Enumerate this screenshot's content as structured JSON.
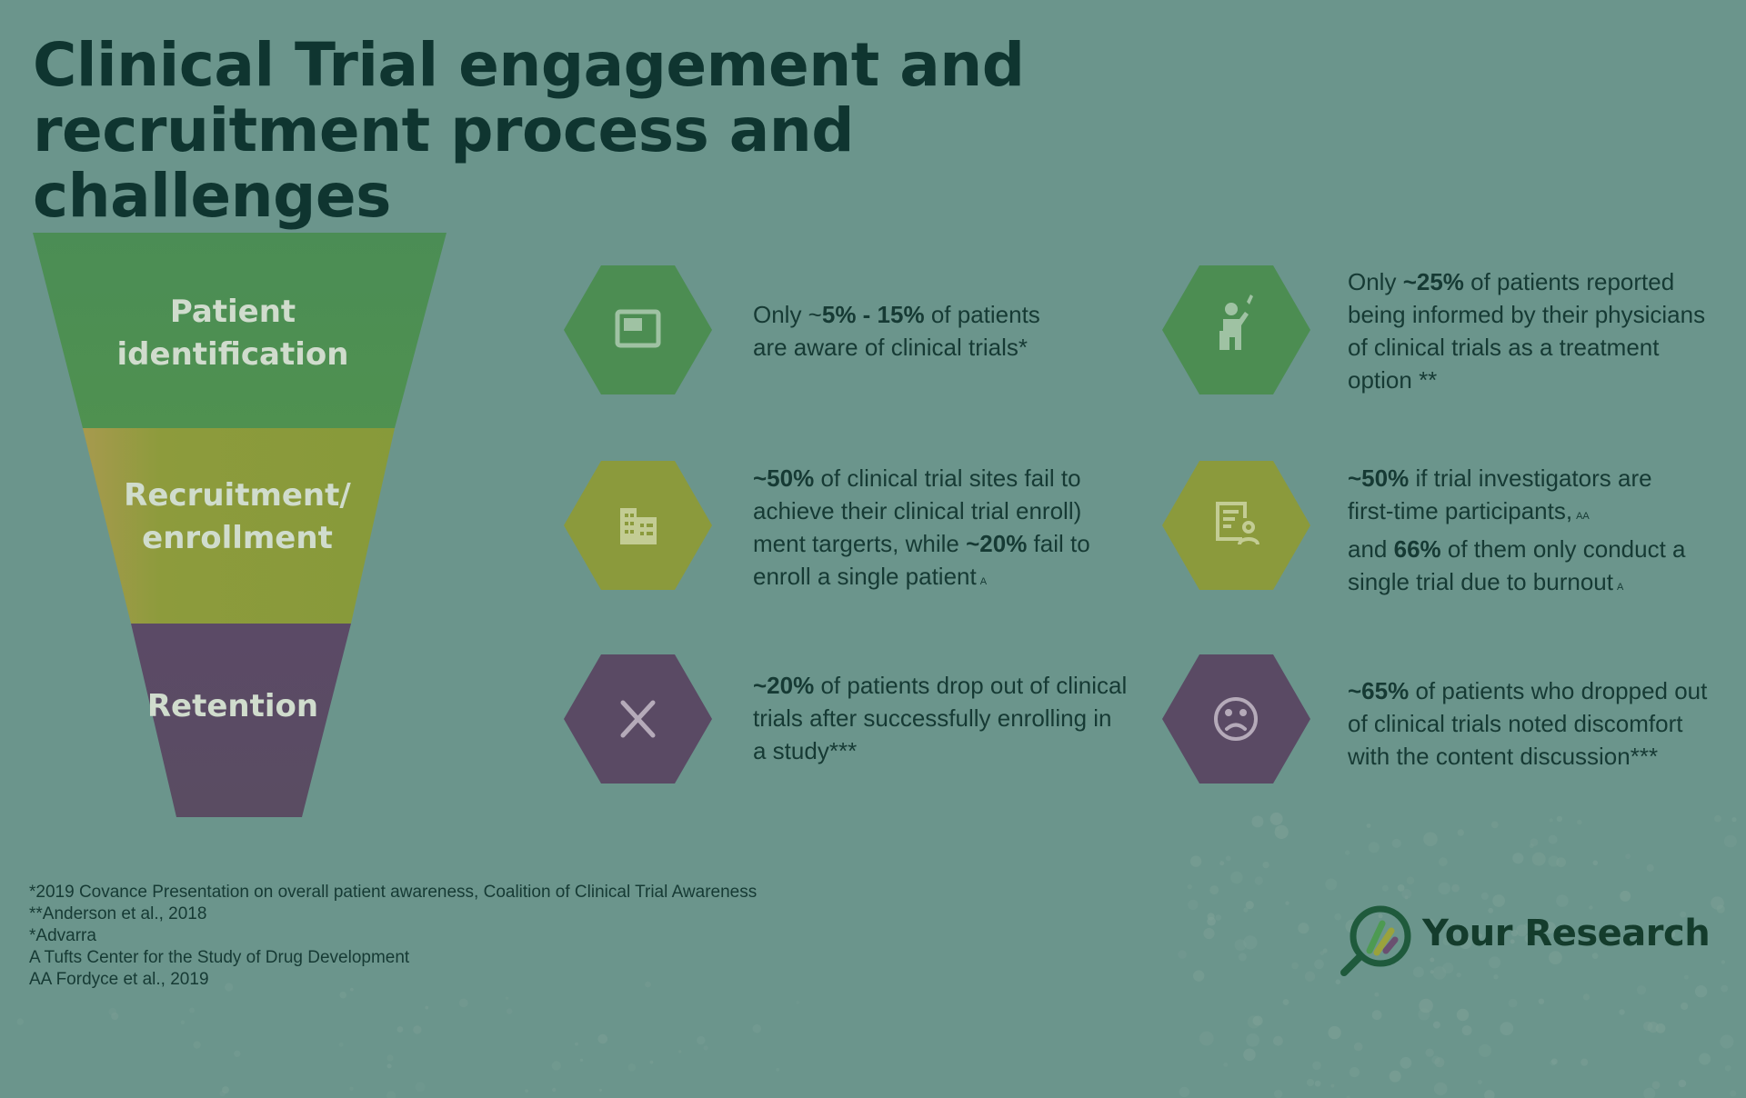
{
  "title": {
    "line1": "Clinical Trial engagement and",
    "line2": "recruitment process and challenges"
  },
  "funnel": {
    "stage1": {
      "line1": "Patient",
      "line2": "identification"
    },
    "stage2": {
      "line1": "Recruitment/",
      "line2": "enrollment"
    },
    "stage3": {
      "line1": "Retention"
    }
  },
  "colors": {
    "background": "#6b958c",
    "green": "#4c8d52",
    "olive": "#8b9a3c",
    "purple": "#5a4a64",
    "title": "#0f3530",
    "text": "#163a34"
  },
  "icons": {
    "awareness": "monitor-icon",
    "informed": "person-raising-hand-icon",
    "sites": "building-icon",
    "investigators": "user-checklist-icon",
    "dropout": "close-x-icon",
    "discomfort": "sad-face-icon"
  },
  "stats": {
    "awareness": {
      "l1a": "Only ~",
      "l1b": "5% - 15%",
      "l1c": " of patients",
      "l2": "are aware of clinical trials*"
    },
    "informed": {
      "l1a": "Only ",
      "l1b": "~25%",
      "l1c": " of patients reported",
      "l2": "being informed by their physicians",
      "l3": "of clinical trials as a treatment",
      "l4": "option **"
    },
    "sites": {
      "l1b": "~50%",
      "l1c": " of clinical trial sites fail to",
      "l2": "achieve their clinical trial enroll)",
      "l3a": "ment targerts, while ",
      "l3b": "~20%",
      "l3c": " fail to",
      "l4": "enroll a single patient",
      "l4sup": "A"
    },
    "investigators": {
      "l1b": "~50%",
      "l1c": " if trial investigators are",
      "l2": "first-time participants,",
      "l2sup": "AA",
      "l3a": "and ",
      "l3b": "66%",
      "l3c": " of them only conduct a",
      "l4": "single trial due to burnout",
      "l4sup": "A"
    },
    "dropout": {
      "l1b": "~20%",
      "l1c": " of patients drop out of clinical",
      "l2": "trials after successfully enrolling in",
      "l3": "a study***"
    },
    "discomfort": {
      "l1b": "~65%",
      "l1c": " of patients who dropped out",
      "l2": "of clinical trials noted discomfort",
      "l3": "with the content discussion***"
    }
  },
  "footnotes": [
    "*2019 Covance Presentation on overall patient awareness, Coalition of Clinical Trial Awareness",
    "**Anderson et al., 2018",
    "*Advarra",
    "A Tufts Center for the Study of Drug Development",
    "AA Fordyce et al., 2019"
  ],
  "logo": {
    "text": "Your Research",
    "icon": "magnifier-chart-icon"
  }
}
